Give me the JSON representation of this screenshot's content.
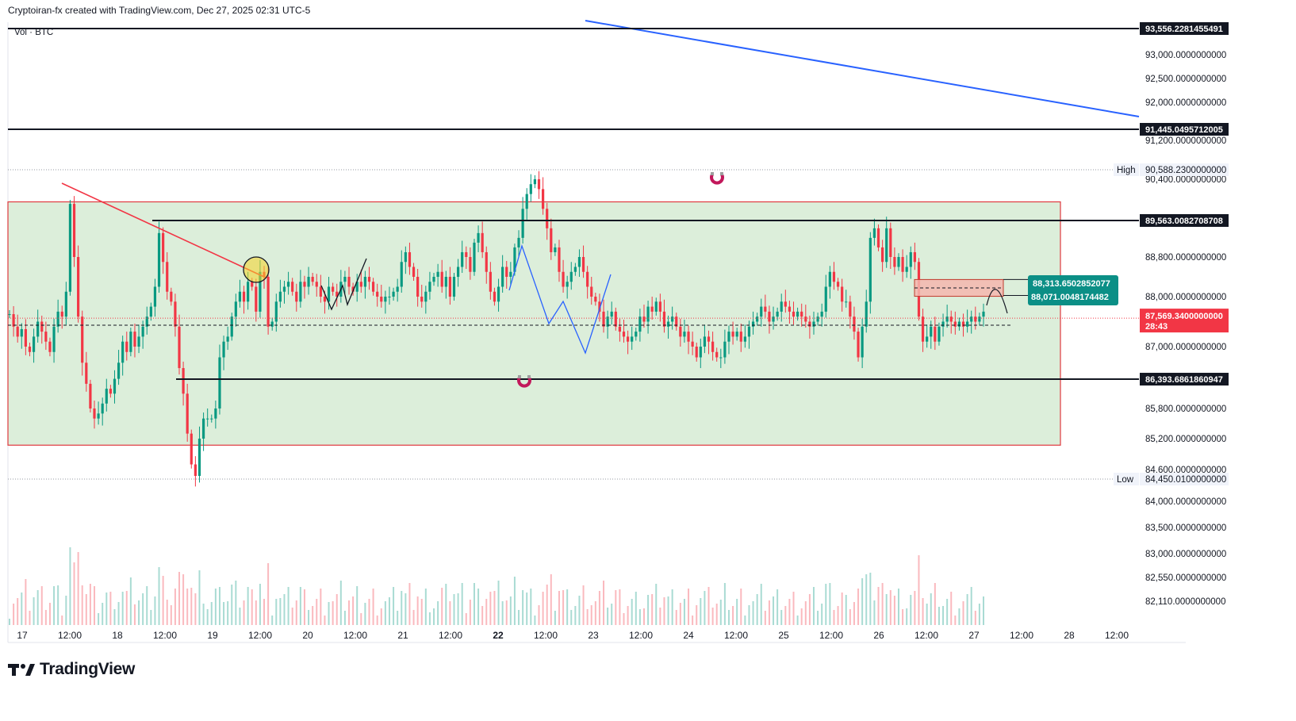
{
  "header": {
    "caption": "Cryptoiran-fx created with TradingView.com, Dec 27, 2025 02:31 UTC-5"
  },
  "volume_legend": "Vol · BTC",
  "brand": {
    "name": "TradingView"
  },
  "colors": {
    "up": "#089981",
    "down": "#f23645",
    "zone_fill": "#d8ecd6",
    "zone_border": "#e0383e",
    "trend_blue": "#2962ff",
    "trend_red": "#f23645",
    "teal_label": "#0b8f86"
  },
  "chart_data": {
    "type": "candlestick",
    "symbol": "BTC",
    "timeframe_labels": [
      "17",
      "12:00",
      "18",
      "12:00",
      "19",
      "12:00",
      "20",
      "12:00",
      "21",
      "12:00",
      "22",
      "12:00",
      "23",
      "12:00",
      "24",
      "12:00",
      "25",
      "12:00",
      "26",
      "12:00",
      "27",
      "12:00",
      "28",
      "12:00"
    ],
    "y_ticks": [
      "93,000.0000000000",
      "92,500.0000000000",
      "92,000.0000000000",
      "91,200.0000000000",
      "90,400.0000000000",
      "88,800.0000000000",
      "88,000.0000000000",
      "87,000.0000000000",
      "85,800.0000000000",
      "85,200.0000000000",
      "84,600.0000000000",
      "84,000.0000000000",
      "83,500.0000000000",
      "83,000.0000000000",
      "82,550.0000000000",
      "82,110.0000000000"
    ],
    "horizontal_levels": [
      {
        "price": "93,556.2281455491",
        "style": "black-label"
      },
      {
        "price": "91,445.0495712005",
        "style": "black-label"
      },
      {
        "price": "89,563.0082708708",
        "style": "black-label"
      },
      {
        "price": "86,393.6861860947",
        "style": "black-label"
      }
    ],
    "high": {
      "label": "High",
      "price": "90,588.2300000000"
    },
    "low": {
      "label": "Low",
      "price": "84,450.0100000000"
    },
    "last_price": {
      "price": "87,569.3400000000",
      "countdown": "28:43"
    },
    "target_box": {
      "upper": "88,313.6502852077",
      "lower": "88,071.0048174482"
    },
    "range_box": {
      "top": 89700,
      "bottom": 85150
    },
    "close_series": [
      87650,
      87400,
      87200,
      87350,
      87000,
      86900,
      87200,
      87500,
      87300,
      87100,
      86900,
      87400,
      87700,
      87600,
      88100,
      89900,
      88800,
      87600,
      86700,
      86300,
      85800,
      85600,
      85700,
      85900,
      86200,
      86100,
      86400,
      86700,
      87100,
      86900,
      87300,
      87000,
      87200,
      87400,
      87600,
      87800,
      88200,
      89300,
      88700,
      88100,
      87900,
      87400,
      86600,
      86100,
      85300,
      84700,
      84500,
      85200,
      85600,
      85600,
      85600,
      85800,
      86800,
      87100,
      87200,
      87600,
      87900,
      88100,
      87900,
      88300,
      88200,
      87700,
      88500,
      88400,
      87400,
      87500,
      87900,
      88100,
      88200,
      88300,
      88100,
      87900,
      88300,
      88200,
      88400,
      88300,
      88200,
      88000,
      87900,
      88200,
      88100,
      88000,
      88300,
      88400,
      88200,
      88100,
      88300,
      88200,
      88400,
      88300,
      88100,
      88000,
      87900,
      88000,
      88000,
      88100,
      88200,
      88700,
      88900,
      88600,
      88400,
      88000,
      87900,
      88100,
      88300,
      88400,
      88500,
      88200,
      88400,
      88000,
      88400,
      88600,
      88900,
      88800,
      88500,
      89100,
      89300,
      88900,
      88500,
      88100,
      87900,
      88200,
      88600,
      88400,
      88500,
      89000,
      89200,
      89800,
      90100,
      90300,
      90400,
      90200,
      89800,
      89400,
      88900,
      89000,
      88500,
      88200,
      88300,
      88500,
      88600,
      88800,
      88500,
      88200,
      88000,
      87900,
      87700,
      87400,
      87600,
      87700,
      87400,
      87300,
      87200,
      87100,
      87200,
      87300,
      87600,
      87500,
      87800,
      87700,
      87900,
      87700,
      87400,
      87500,
      87600,
      87400,
      87200,
      87300,
      87100,
      87000,
      86800,
      87000,
      87200,
      87100,
      86900,
      86800,
      86800,
      87100,
      87300,
      87200,
      87300,
      87100,
      87200,
      87400,
      87500,
      87600,
      87800,
      87700,
      87500,
      87600,
      87700,
      87900,
      87800,
      87700,
      87600,
      87700,
      87600,
      87500,
      87400,
      87500,
      87600,
      87700,
      88200,
      88500,
      88300,
      88200,
      87900,
      87900,
      87600,
      87300,
      86800,
      87400,
      87900,
      89200,
      89400,
      89000,
      88700,
      89400,
      88800,
      88600,
      88800,
      88500,
      88600,
      88900,
      88700,
      87600,
      87100,
      87200,
      87400,
      87100,
      87400,
      87500,
      87600,
      87500,
      87400,
      87500,
      87400,
      87500,
      87600,
      87500,
      87600,
      87700
    ],
    "annotations": [
      "Descending blue trendline",
      "Red trendline from 17 high",
      "Green consolidation range box",
      "Zig-zag projection paths"
    ]
  }
}
